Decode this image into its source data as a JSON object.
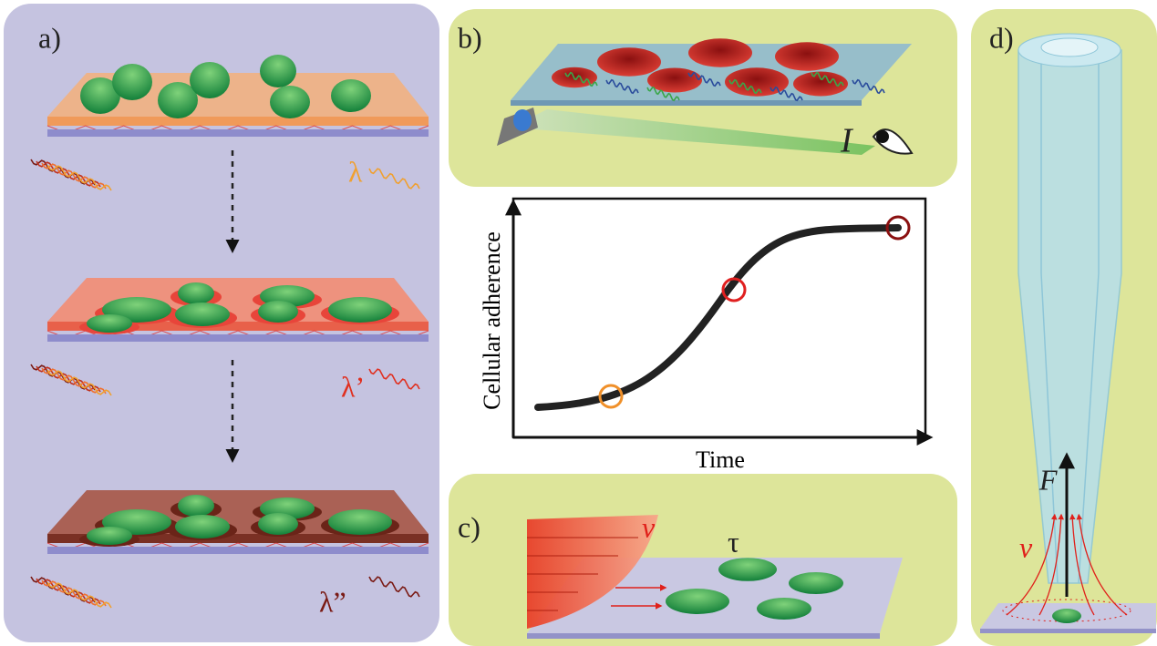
{
  "panels": {
    "a": {
      "label": "a)",
      "wavelengths": [
        "λ",
        "λ’",
        "λ”"
      ]
    },
    "b": {
      "label": "b)",
      "intensity": "I"
    },
    "chart": {
      "y_axis_label": "Cellular adherence",
      "x_axis_label": "Time"
    },
    "c": {
      "label": "c)",
      "velocity": "v",
      "shear_stress": "τ"
    },
    "d": {
      "label": "d)",
      "force": "F",
      "velocity": "v"
    }
  }
}
